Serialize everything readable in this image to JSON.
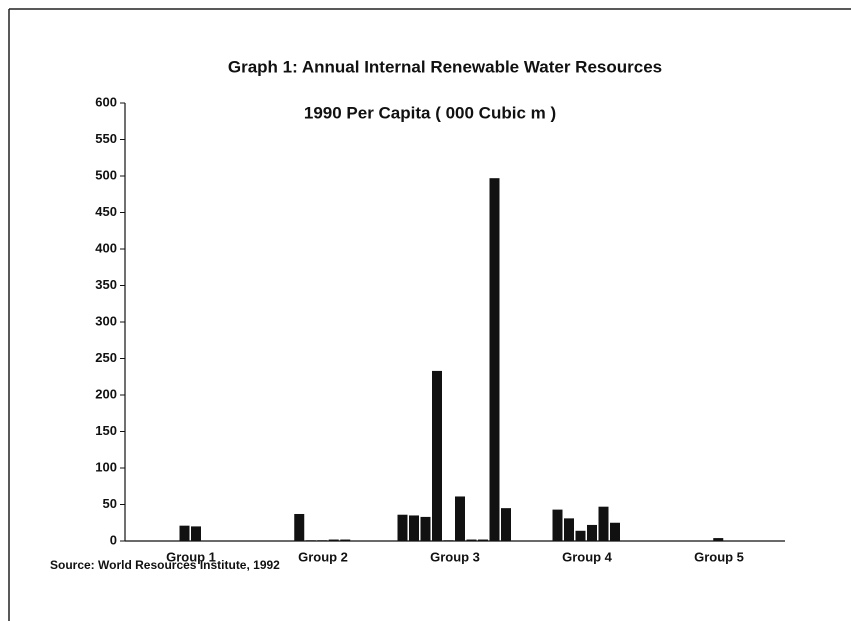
{
  "chart_data": {
    "type": "grouped-bar",
    "title": "Graph  1: Annual Internal Renewable Water Resources",
    "subtitle": "1990 Per Capita ( 000 Cubic m )",
    "source": "Source: World Resources Institute, 1992",
    "color": "#111111",
    "ylim": [
      0,
      600
    ],
    "yticks": [
      0,
      50,
      100,
      150,
      200,
      250,
      300,
      350,
      400,
      450,
      500,
      550,
      600
    ],
    "groups": [
      {
        "name": "Group 1",
        "values": [
          21,
          20
        ]
      },
      {
        "name": "Group 2",
        "values": [
          37,
          1,
          1,
          2,
          2
        ]
      },
      {
        "name": "Group 3",
        "values": [
          36,
          35,
          33,
          233,
          1,
          61,
          2,
          2,
          497,
          45
        ]
      },
      {
        "name": "Group 4",
        "values": [
          43,
          31,
          14,
          22,
          47,
          25
        ]
      },
      {
        "name": "Group 5",
        "values": [
          4
        ]
      }
    ]
  }
}
